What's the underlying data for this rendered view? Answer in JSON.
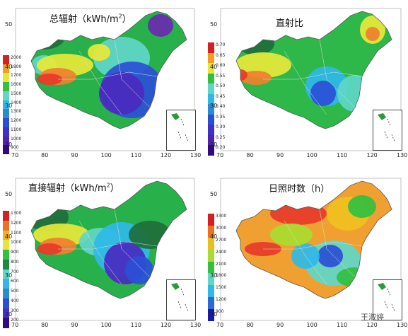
{
  "panels": [
    {
      "title_main": "总辐射（kWh/m",
      "title_sup": "2",
      "title_end": "）",
      "legend": [
        "2000",
        "1800",
        "1700",
        "1600",
        "1500",
        "1400",
        "1300",
        "1200",
        "1100",
        "1000",
        "900"
      ],
      "x_ticks": [
        "70",
        "80",
        "90",
        "100",
        "110",
        "120",
        "130"
      ],
      "y_ticks": [
        "50",
        "40",
        "30",
        "20"
      ],
      "colors": {
        "high": "#e8372a",
        "mid": "#35c24a",
        "low": "#4a3bd8"
      }
    },
    {
      "title_main": "直射比",
      "title_sup": "",
      "title_end": "",
      "legend": [
        "0.70",
        "0.65",
        "0.60",
        "0.55",
        "0.50",
        "0.45",
        "0.40",
        "0.35",
        "0.30",
        "0.25",
        "0.20"
      ],
      "x_ticks": [
        "70",
        "80",
        "90",
        "100",
        "110",
        "120",
        "130"
      ],
      "y_ticks": [
        "50",
        "40",
        "30",
        "20"
      ],
      "colors": {
        "high": "#e8372a",
        "mid": "#35c24a",
        "low": "#4a3bd8"
      }
    },
    {
      "title_main": "直接辐射（kWh/m",
      "title_sup": "2",
      "title_end": "）",
      "legend": [
        "1300",
        "1200",
        "1100",
        "1000",
        "900",
        "800",
        "700",
        "600",
        "500",
        "400",
        "300",
        "200"
      ],
      "x_ticks": [
        "70",
        "80",
        "90",
        "100",
        "110",
        "120",
        "130"
      ],
      "y_ticks": [
        "50",
        "40",
        "30",
        "20"
      ],
      "colors": {
        "high": "#e8372a",
        "mid": "#35c24a",
        "low": "#4a3bd8"
      }
    },
    {
      "title_main": "日照时数（h）",
      "title_sup": "",
      "title_end": "",
      "legend": [
        "3300",
        "3000",
        "2700",
        "2400",
        "2100",
        "1800",
        "1500",
        "1200",
        "900"
      ],
      "x_ticks": [
        "70",
        "80",
        "90",
        "100",
        "110",
        "120",
        "130"
      ],
      "y_ticks": [
        "50",
        "40",
        "30",
        "20"
      ],
      "colors": {
        "high": "#e8372a",
        "mid": "#35c24a",
        "low": "#4a3bd8"
      }
    }
  ],
  "watermark": "王淑婷"
}
